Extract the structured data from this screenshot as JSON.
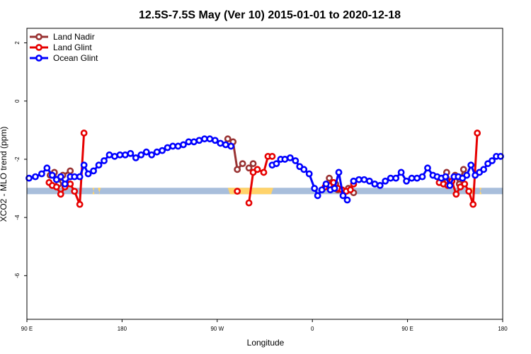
{
  "chart_data": {
    "type": "line",
    "title": "12.5S-7.5S May (Ver 10)   2015-01-01 to 2020-12-18",
    "xlabel": "Longitude",
    "ylabel": "XCO2 - MLO trend (ppm)",
    "xlim": [
      90,
      540
    ],
    "ylim": [
      -7.5,
      2.5
    ],
    "xticks": [
      {
        "value": 90,
        "label": "90 E"
      },
      {
        "value": 180,
        "label": "180"
      },
      {
        "value": 270,
        "label": "90 W"
      },
      {
        "value": 360,
        "label": "0"
      },
      {
        "value": 450,
        "label": "90 E"
      },
      {
        "value": 540,
        "label": "180"
      }
    ],
    "yticks": [
      {
        "value": 2,
        "label": "2"
      },
      {
        "value": 0,
        "label": "0"
      },
      {
        "value": -2,
        "label": "-2"
      },
      {
        "value": -4,
        "label": "-4"
      },
      {
        "value": -6,
        "label": "-6"
      }
    ],
    "grid": false,
    "legend": "top-left",
    "band": {
      "y_min": -3.2,
      "y_max": -2.98,
      "color": "#a8bedb"
    },
    "band_highlights": [
      {
        "x1": 152,
        "x2": 154,
        "color": "#ffd36b"
      },
      {
        "x1": 157,
        "x2": 160,
        "color": "#ffd36b"
      },
      {
        "x1": 280,
        "x2": 323,
        "color": "#ffd36b"
      },
      {
        "x1": 508,
        "x2": 513,
        "color": "#ffd36b"
      },
      {
        "x1": 518,
        "x2": 520,
        "color": "#ffd36b"
      }
    ],
    "series": [
      {
        "name": "Land Nadir",
        "color": "#993333",
        "x": [
          112,
          116,
          120,
          124,
          131
        ],
        "y": [
          -2.55,
          -2.45,
          -2.85,
          -2.55,
          -2.4
        ]
      },
      {
        "name": "Land Nadir",
        "color": "#993333",
        "x": [
          280,
          285,
          289,
          294
        ],
        "y": [
          -1.3,
          -1.4,
          -2.35,
          -2.15
        ]
      },
      {
        "name": "Land Nadir",
        "color": "#993333",
        "x": [
          300,
          304
        ],
        "y": [
          -2.3,
          -2.15
        ]
      },
      {
        "name": "Land Nadir",
        "color": "#993333",
        "x": [
          376,
          378,
          382,
          384,
          390,
          394,
          399
        ],
        "y": [
          -2.65,
          -2.95,
          -2.85,
          -3.05,
          -3.1,
          -3.0,
          -3.15
        ]
      },
      {
        "name": "Land Nadir",
        "color": "#993333",
        "x": [
          483,
          487,
          491,
          495,
          499,
          503
        ],
        "y": [
          -2.75,
          -2.45,
          -2.85,
          -2.55,
          -2.85,
          -2.35
        ]
      },
      {
        "name": "Land Glint",
        "color": "#e60000",
        "x": [
          111,
          114,
          118,
          122,
          126,
          131,
          135,
          140,
          144
        ],
        "y": [
          -2.8,
          -2.9,
          -2.95,
          -3.2,
          -2.95,
          -2.85,
          -3.1,
          -3.55,
          -1.1
        ]
      },
      {
        "name": "Land Glint",
        "color": "#e60000",
        "x": [
          289
        ],
        "y": [
          -3.1
        ]
      },
      {
        "name": "Land Glint",
        "color": "#e60000",
        "x": [
          300,
          304,
          308,
          314,
          318,
          322
        ],
        "y": [
          -3.5,
          -2.45,
          -2.35,
          -2.45,
          -1.9,
          -1.9
        ]
      },
      {
        "name": "Land Glint",
        "color": "#e60000",
        "x": [
          372,
          376,
          380,
          384,
          388,
          392,
          396,
          399
        ],
        "y": [
          -2.95,
          -2.9,
          -2.8,
          -3.0,
          -3.05,
          -3.1,
          -3.05,
          -2.85
        ]
      },
      {
        "name": "Land Glint",
        "color": "#e60000",
        "x": [
          480,
          484,
          488,
          492,
          496,
          500,
          504,
          508,
          512,
          516
        ],
        "y": [
          -2.8,
          -2.85,
          -2.9,
          -2.75,
          -3.2,
          -2.95,
          -2.85,
          -3.1,
          -3.55,
          -1.1
        ]
      },
      {
        "name": "Ocean Glint",
        "color": "#0000ff",
        "x": [
          92,
          98,
          104,
          109,
          114,
          118,
          122,
          126,
          131,
          135,
          140,
          144,
          148,
          153,
          158,
          163,
          168,
          173,
          178,
          183,
          188,
          193,
          198,
          203,
          208,
          213,
          218,
          223,
          228,
          233,
          238,
          243,
          248,
          253,
          258,
          263,
          268,
          273,
          278,
          283
        ],
        "y": [
          -2.65,
          -2.6,
          -2.5,
          -2.3,
          -2.55,
          -2.7,
          -2.6,
          -2.85,
          -2.6,
          -2.6,
          -2.6,
          -2.2,
          -2.5,
          -2.4,
          -2.2,
          -2.05,
          -1.85,
          -1.9,
          -1.85,
          -1.85,
          -1.8,
          -1.95,
          -1.85,
          -1.75,
          -1.85,
          -1.75,
          -1.7,
          -1.6,
          -1.55,
          -1.55,
          -1.5,
          -1.4,
          -1.4,
          -1.35,
          -1.3,
          -1.3,
          -1.35,
          -1.45,
          -1.5,
          -1.55
        ]
      },
      {
        "name": "Ocean Glint",
        "color": "#0000ff",
        "x": [
          322,
          326,
          330,
          334,
          339,
          344,
          348,
          352,
          357,
          362,
          365,
          369,
          373,
          377,
          381,
          385,
          389,
          393
        ],
        "y": [
          -2.2,
          -2.15,
          -2.0,
          -2.0,
          -1.95,
          -2.05,
          -2.25,
          -2.35,
          -2.5,
          -3.0,
          -3.25,
          -3.05,
          -2.85,
          -3.05,
          -3.0,
          -2.45,
          -3.25,
          -3.4
        ]
      },
      {
        "name": "Ocean Glint",
        "color": "#0000ff",
        "x": [
          399,
          404,
          409,
          414,
          419,
          424,
          429,
          434,
          439,
          444,
          449,
          454,
          459,
          464,
          469,
          474,
          478,
          482,
          486,
          490,
          494,
          498,
          502,
          506,
          510,
          514,
          518,
          522,
          526,
          530,
          534,
          538
        ],
        "y": [
          -2.75,
          -2.7,
          -2.7,
          -2.75,
          -2.85,
          -2.9,
          -2.75,
          -2.65,
          -2.65,
          -2.45,
          -2.75,
          -2.65,
          -2.65,
          -2.6,
          -2.3,
          -2.55,
          -2.6,
          -2.65,
          -2.6,
          -2.9,
          -2.6,
          -2.6,
          -2.65,
          -2.55,
          -2.2,
          -2.55,
          -2.45,
          -2.35,
          -2.15,
          -2.05,
          -1.9,
          -1.9
        ]
      }
    ],
    "legend_entries": [
      {
        "name": "Land Nadir",
        "color": "#993333"
      },
      {
        "name": "Land Glint",
        "color": "#e60000"
      },
      {
        "name": "Ocean Glint",
        "color": "#0000ff"
      }
    ]
  }
}
